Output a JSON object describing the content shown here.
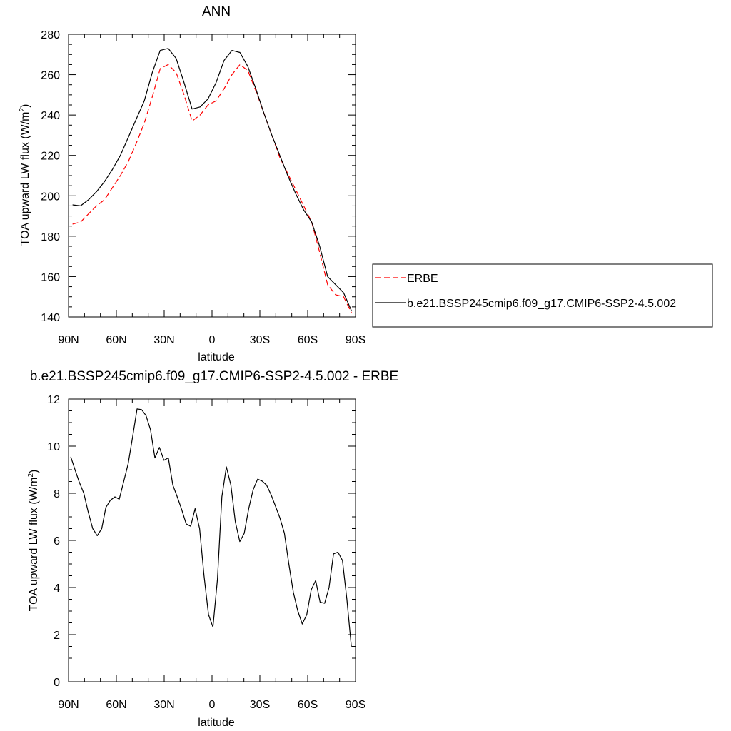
{
  "chart_data": [
    {
      "type": "line",
      "title": "ANN",
      "xlabel": "latitude",
      "ylabel": "TOA upward LW flux (W/m",
      "ylabel_sup": "2",
      "ylabel_close": ")",
      "xlim": [
        90,
        -90
      ],
      "ylim": [
        140,
        280
      ],
      "x_ticks": [
        90,
        60,
        30,
        0,
        -30,
        -60,
        -90
      ],
      "x_tick_labels": [
        "90N",
        "60N",
        "30N",
        "0",
        "30S",
        "60S",
        "90S"
      ],
      "y_ticks": [
        140,
        160,
        180,
        200,
        220,
        240,
        260,
        280
      ],
      "y_tick_labels": [
        "140",
        "160",
        "180",
        "200",
        "220",
        "240",
        "260",
        "280"
      ],
      "legend_position": "right",
      "series": [
        {
          "name": "ERBE",
          "color": "#ff0000",
          "dash": "dashed",
          "x": [
            87.5,
            82.5,
            77.5,
            72.5,
            67.5,
            62.5,
            57.5,
            52.5,
            47.5,
            42.5,
            37.5,
            32.5,
            27.5,
            22.5,
            17.5,
            12.5,
            7.5,
            2.5,
            -2.5,
            -7.5,
            -12.5,
            -17.5,
            -22.5,
            -27.5,
            -32.5,
            -37.5,
            -42.5,
            -47.5,
            -52.5,
            -57.5,
            -62.5,
            -67.5,
            -72.5,
            -77.5,
            -82.5,
            -87.5
          ],
          "values": [
            186,
            187,
            191,
            195,
            198,
            204,
            210,
            217,
            226,
            236,
            249,
            263,
            265,
            261,
            250,
            237,
            240,
            245,
            247,
            253,
            260,
            265,
            262,
            252,
            241,
            230,
            219,
            211,
            203,
            195,
            187,
            172,
            156,
            151,
            150,
            142
          ]
        },
        {
          "name": "b.e21.BSSP245cmip6.f09_g17.CMIP6-SSP2-4.5.002",
          "color": "#000000",
          "dash": "solid",
          "x": [
            87.5,
            82.5,
            77.5,
            72.5,
            67.5,
            62.5,
            57.5,
            52.5,
            47.5,
            42.5,
            37.5,
            32.5,
            27.5,
            22.5,
            17.5,
            12.5,
            7.5,
            2.5,
            -2.5,
            -7.5,
            -12.5,
            -17.5,
            -22.5,
            -27.5,
            -32.5,
            -37.5,
            -42.5,
            -47.5,
            -52.5,
            -57.5,
            -62.5,
            -67.5,
            -72.5,
            -77.5,
            -82.5,
            -87.5
          ],
          "values": [
            195.5,
            195,
            198,
            202,
            207,
            213,
            220,
            229,
            238,
            247,
            261,
            272,
            273,
            268,
            256,
            243,
            244,
            248,
            256,
            267,
            272,
            271,
            264,
            253,
            241,
            230,
            220,
            210,
            201,
            193,
            187,
            175,
            160,
            156,
            152,
            143
          ]
        }
      ]
    },
    {
      "type": "line",
      "title": "b.e21.BSSP245cmip6.f09_g17.CMIP6-SSP2-4.5.002 - ERBE",
      "xlabel": "latitude",
      "ylabel": "TOA upward LW flux (W/m",
      "ylabel_sup": "2",
      "ylabel_close": ")",
      "xlim": [
        90,
        -90
      ],
      "ylim": [
        0,
        12
      ],
      "x_ticks": [
        90,
        60,
        30,
        0,
        -30,
        -60,
        -90
      ],
      "x_tick_labels": [
        "90N",
        "60N",
        "30N",
        "0",
        "30S",
        "60S",
        "90S"
      ],
      "y_ticks": [
        0,
        2,
        4,
        6,
        8,
        10,
        12
      ],
      "y_tick_labels": [
        "0",
        "2",
        "4",
        "6",
        "8",
        "10",
        "12"
      ],
      "series": [
        {
          "color": "#000000",
          "dash": "solid",
          "x": [
            88.6,
            86.2,
            83.4,
            80.4,
            77.8,
            74.8,
            72.0,
            69.2,
            66.6,
            63.8,
            60.9,
            58.2,
            55.4,
            52.6,
            49.8,
            47.0,
            44.2,
            41.4,
            38.6,
            35.8,
            33.0,
            30.2,
            27.4,
            24.6,
            21.8,
            19.0,
            16.2,
            13.4,
            10.6,
            7.8,
            5.0,
            2.2,
            -0.6,
            -3.4,
            -6.2,
            -9.0,
            -11.8,
            -14.6,
            -17.4,
            -20.2,
            -23.0,
            -25.8,
            -28.6,
            -31.4,
            -34.2,
            -37.0,
            -39.8,
            -42.6,
            -45.4,
            -48.2,
            -51.0,
            -53.8,
            -56.6,
            -59.4,
            -62.2,
            -65.0,
            -67.8,
            -70.6,
            -73.4,
            -76.2,
            -79.0,
            -81.8,
            -84.6,
            -87.4
          ],
          "values": [
            9.55,
            9.05,
            8.5,
            8.0,
            7.25,
            6.5,
            6.2,
            6.5,
            7.4,
            7.7,
            7.85,
            7.75,
            8.5,
            9.25,
            10.4,
            11.58,
            11.55,
            11.3,
            10.7,
            9.5,
            9.95,
            9.4,
            9.5,
            8.35,
            7.85,
            7.3,
            6.7,
            6.6,
            7.35,
            6.5,
            4.5,
            2.85,
            2.32,
            4.35,
            7.85,
            9.12,
            8.35,
            6.8,
            5.95,
            6.3,
            7.35,
            8.15,
            8.6,
            8.52,
            8.35,
            7.95,
            7.45,
            6.95,
            6.3,
            5.0,
            3.8,
            3.0,
            2.45,
            2.85,
            3.9,
            4.3,
            3.38,
            3.33,
            4.0,
            5.43,
            5.5,
            5.15,
            3.5,
            1.48
          ]
        }
      ]
    }
  ]
}
